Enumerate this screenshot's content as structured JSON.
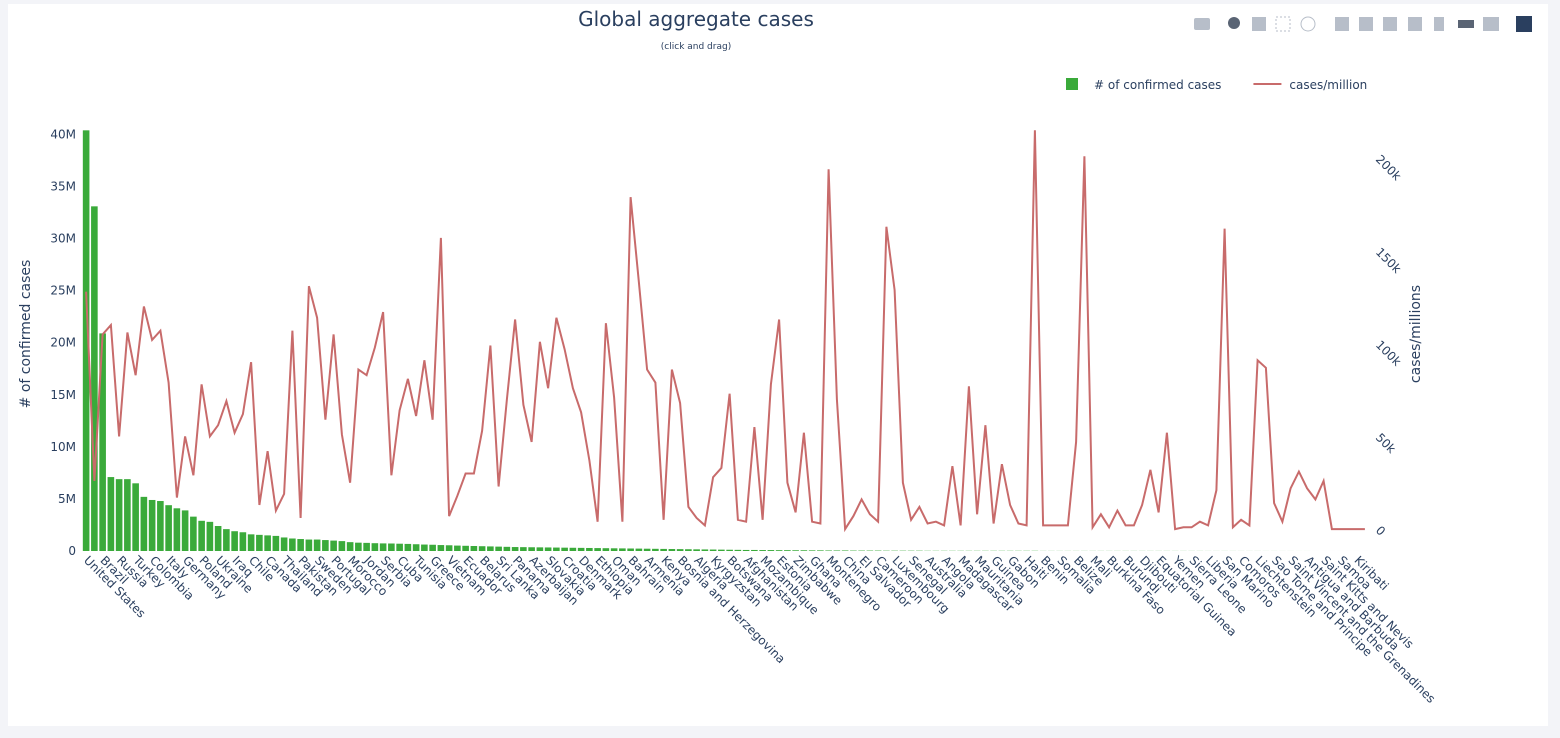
{
  "chart_data": {
    "type": "bar",
    "title": "Global aggregate cases",
    "subtitle": "(click and drag)",
    "categories": [
      "United States",
      null,
      "Brazil",
      null,
      "Russia",
      null,
      "Turkey",
      null,
      "Colombia",
      null,
      "Italy",
      null,
      "Germany",
      null,
      "Poland",
      null,
      "Ukraine",
      null,
      "Iraq",
      null,
      "Chile",
      null,
      "Canada",
      null,
      "Thailand",
      null,
      "Pakistan",
      null,
      "Sweden",
      null,
      "Portugal",
      null,
      "Morocco",
      null,
      "Jordan",
      null,
      "Serbia",
      null,
      "Cuba",
      null,
      "Tunisia",
      null,
      "Greece",
      null,
      "Vietnam",
      null,
      "Ecuador",
      null,
      "Belarus",
      null,
      "Sri Lanka",
      null,
      "Panama",
      null,
      "Azerbaijan",
      null,
      "Slovakia",
      null,
      "Croatia",
      null,
      "Denmark",
      null,
      "Ethiopia",
      null,
      "Oman",
      null,
      "Bahrain",
      null,
      "Armenia",
      null,
      "Kenya",
      null,
      "Bosnia and Herzegovina",
      null,
      "Algeria",
      null,
      "Kyrgyzstan",
      null,
      "Botswana",
      null,
      "Afghanistan",
      null,
      "Mozambique",
      null,
      "Estonia",
      null,
      "Zimbabwe",
      null,
      "Ghana",
      null,
      "Montenegro",
      null,
      "China",
      null,
      "El Salvador",
      null,
      "Cameroon",
      null,
      "Luxembourg",
      null,
      "Senegal",
      null,
      "Australia",
      null,
      "Angola",
      null,
      "Madagascar",
      null,
      "Mauritania",
      null,
      "Guinea",
      null,
      "Gabon",
      null,
      "Haiti",
      null,
      "Benin",
      null,
      "Somalia",
      null,
      "Belize",
      null,
      "Mali",
      null,
      "Burkina Faso",
      null,
      "Burundi",
      null,
      "Djibouti",
      null,
      "Equatorial Guinea",
      null,
      "Yemen",
      null,
      "Sierra Leone",
      null,
      "Liberia",
      null,
      "San Marino",
      null,
      "Comoros",
      null,
      "Liechtenstein",
      null,
      "Sao Tome and Principe",
      null,
      "Saint Vincent and the Grenadines",
      null,
      "Antigua and Barbuda",
      null,
      "Saint Kitts and Nevis",
      null,
      "Samoa",
      null,
      "Kiribati",
      null
    ],
    "series": [
      {
        "name": "# of confirmed cases",
        "type": "bar",
        "color": "#3aaa3a",
        "values": [
          40400000,
          33100000,
          20900000,
          7100000,
          6900000,
          6900000,
          6500000,
          5200000,
          4900000,
          4800000,
          4400000,
          4100000,
          3900000,
          3300000,
          2900000,
          2800000,
          2400000,
          2100000,
          1900000,
          1800000,
          1600000,
          1550000,
          1500000,
          1450000,
          1300000,
          1200000,
          1150000,
          1100000,
          1100000,
          1050000,
          1000000,
          950000,
          850000,
          800000,
          780000,
          750000,
          730000,
          720000,
          700000,
          680000,
          650000,
          620000,
          600000,
          570000,
          550000,
          520000,
          500000,
          480000,
          460000,
          440000,
          420000,
          400000,
          380000,
          370000,
          360000,
          350000,
          340000,
          330000,
          320000,
          310000,
          300000,
          290000,
          280000,
          270000,
          260000,
          250000,
          240000,
          230000,
          220000,
          210000,
          200000,
          190000,
          180000,
          170000,
          160000,
          150000,
          140000,
          130000,
          120000,
          110000,
          100000,
          100000,
          90000,
          90000,
          80000,
          80000,
          70000,
          70000,
          60000,
          60000,
          50000,
          50000,
          50000,
          40000,
          40000,
          40000,
          40000,
          30000,
          30000,
          30000,
          30000,
          30000,
          20000,
          20000,
          20000,
          20000,
          20000,
          20000,
          20000,
          20000,
          20000,
          20000,
          20000,
          20000,
          20000,
          20000,
          10000,
          10000,
          10000,
          10000,
          10000,
          10000,
          10000,
          10000,
          10000,
          10000,
          10000,
          10000,
          10000,
          10000,
          10000,
          10000,
          8000,
          8000,
          8000,
          8000,
          6000,
          6000,
          6000,
          6000,
          5000,
          5000,
          5000,
          4000,
          4000,
          3000,
          3000,
          2000,
          2000,
          1000,
          1000,
          1000,
          1000,
          1000,
          500,
          500
        ]
      },
      {
        "name": "cases/million",
        "type": "line",
        "axis": "y2",
        "color": "#c86b6b",
        "values": [
          129000,
          27000,
          106000,
          111000,
          51000,
          107000,
          84000,
          121000,
          103000,
          108000,
          80000,
          18000,
          51000,
          30000,
          79000,
          51000,
          57000,
          70000,
          53000,
          63000,
          91000,
          14000,
          43000,
          11000,
          20000,
          108000,
          7000,
          132000,
          115000,
          60000,
          106000,
          52000,
          26000,
          87000,
          84000,
          99000,
          118000,
          30000,
          65000,
          82000,
          62000,
          92000,
          60000,
          158000,
          8000,
          19000,
          31000,
          31000,
          54000,
          100000,
          24000,
          71000,
          114000,
          68000,
          48000,
          102000,
          77000,
          115000,
          98000,
          77000,
          64000,
          38000,
          5000,
          112000,
          72000,
          5000,
          180000,
          134000,
          87000,
          80000,
          6000,
          87000,
          69000,
          13000,
          7000,
          3000,
          29000,
          34000,
          74000,
          6000,
          5000,
          56000,
          6000,
          79000,
          114000,
          26000,
          10000,
          53000,
          5000,
          4000,
          195000,
          71000,
          1000,
          8000,
          17000,
          9000,
          5000,
          164000,
          130000,
          26000,
          6000,
          13000,
          4000,
          5000,
          3000,
          35000,
          3000,
          78000,
          9000,
          57000,
          4000,
          36000,
          14000,
          4000,
          3000,
          216000,
          3000,
          3000,
          3000,
          3000,
          48000,
          202000,
          2000,
          9000,
          2000,
          11000,
          3000,
          3000,
          14000,
          33000,
          10000,
          53000,
          1000,
          2000,
          2000,
          5000,
          3000,
          22000,
          163000,
          2000,
          6000,
          3000,
          92000,
          88000,
          15000,
          5000,
          23000,
          32000,
          23000,
          17000,
          27000,
          1000,
          1000,
          1000,
          1000,
          1000
        ]
      }
    ],
    "ylabel": "# of confirmed cases",
    "y2label": "cases/millions",
    "ylim": [
      0,
      41200000
    ],
    "yticks": [
      0,
      {
        "value": 5000000,
        "label": "5M"
      },
      {
        "value": 10000000,
        "label": "10M"
      },
      {
        "value": 15000000,
        "label": "15M"
      },
      {
        "value": 20000000,
        "label": "20M"
      },
      {
        "value": 25000000,
        "label": "25M"
      },
      {
        "value": 30000000,
        "label": "30M"
      },
      {
        "value": 35000000,
        "label": "35M"
      },
      {
        "value": 40000000,
        "label": "40M"
      }
    ],
    "y2lim": [
      -10800,
      220500
    ],
    "y2ticks": [
      0,
      {
        "value": 50000,
        "label": "50k"
      },
      {
        "value": 100000,
        "label": "100k"
      },
      {
        "value": 150000,
        "label": "150k"
      },
      {
        "value": 200000,
        "label": "200k"
      }
    ],
    "legend": "top-right",
    "grid": false
  }
}
